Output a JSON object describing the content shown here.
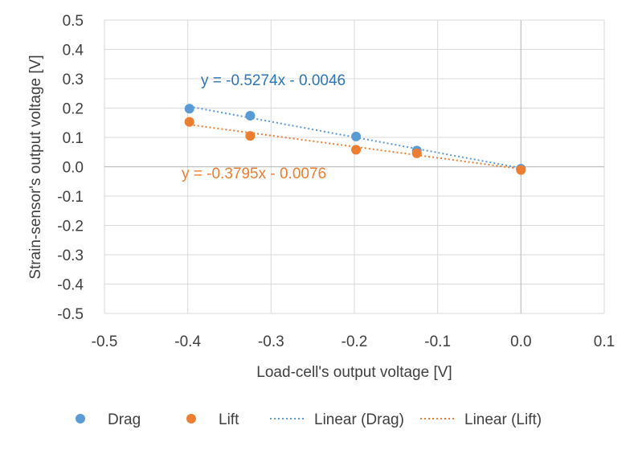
{
  "chart_data": {
    "type": "scatter",
    "title": "",
    "xlabel": "Load-cell's output voltage [V]",
    "ylabel": "Strain-sensor's output voltage [V]",
    "xlim": [
      -0.5,
      0.1
    ],
    "ylim": [
      -0.5,
      0.5
    ],
    "x_ticks": [
      -0.5,
      -0.4,
      -0.3,
      -0.2,
      -0.1,
      0.0,
      0.1
    ],
    "y_ticks": [
      -0.5,
      -0.4,
      -0.3,
      -0.2,
      -0.1,
      0.0,
      0.1,
      0.2,
      0.3,
      0.4,
      0.5
    ],
    "x_tick_labels": [
      "-0.5",
      "-0.4",
      "-0.3",
      "-0.2",
      "-0.1",
      "0.0",
      "0.1"
    ],
    "y_tick_labels": [
      "-0.5",
      "-0.4",
      "-0.3",
      "-0.2",
      "-0.1",
      "0.0",
      "0.1",
      "0.2",
      "0.3",
      "0.4",
      "0.5"
    ],
    "grid": true,
    "legend_position": "bottom",
    "series": [
      {
        "name": "Drag",
        "color": "#5b9bd5",
        "x": [
          -0.398,
          -0.325,
          -0.198,
          -0.125,
          0.0
        ],
        "y": [
          0.198,
          0.174,
          0.103,
          0.055,
          -0.007
        ],
        "trendline": {
          "name": "Linear (Drag)",
          "slope": -0.5274,
          "intercept": -0.0046,
          "x_range": [
            -0.398,
            0.0
          ],
          "equation": "y = -0.5274x - 0.0046",
          "label_color": "#2e75b6"
        }
      },
      {
        "name": "Lift",
        "color": "#ed7d31",
        "x": [
          -0.398,
          -0.325,
          -0.198,
          -0.125,
          0.0
        ],
        "y": [
          0.153,
          0.105,
          0.058,
          0.046,
          -0.011
        ],
        "trendline": {
          "name": "Linear (Lift)",
          "slope": -0.3795,
          "intercept": -0.0076,
          "x_range": [
            -0.398,
            0.0
          ],
          "equation": "y = -0.3795x - 0.0076",
          "label_color": "#ed7d31"
        }
      }
    ]
  }
}
